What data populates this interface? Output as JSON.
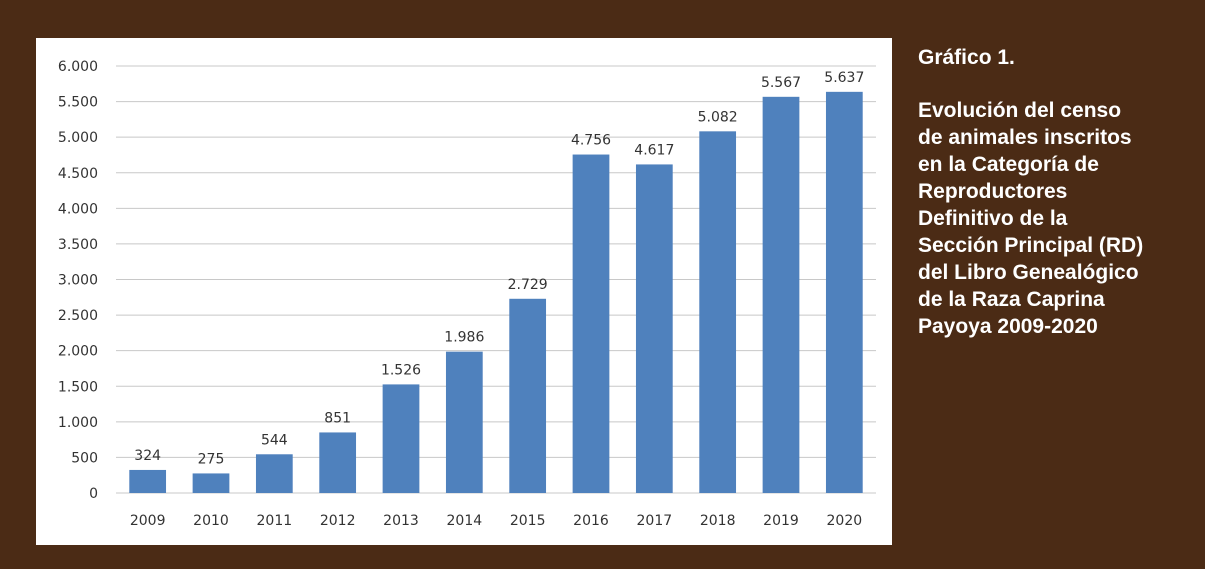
{
  "caption": {
    "number": "Gráfico 1.",
    "title_lines": [
      "Evolución del censo",
      "de animales inscritos",
      "en la Categoría de",
      "Reproductores",
      "Definitivo de la",
      "Sección Principal (RD)",
      "del Libro Genealógico",
      "de la Raza Caprina",
      "Payoya 2009-2020"
    ]
  },
  "colors": {
    "background": "#4b2b15",
    "bar": "#4f81bd",
    "panel": "#ffffff"
  },
  "chart_data": {
    "type": "bar",
    "categories": [
      "2009",
      "2010",
      "2011",
      "2012",
      "2013",
      "2014",
      "2015",
      "2016",
      "2017",
      "2018",
      "2019",
      "2020"
    ],
    "values": [
      324,
      275,
      544,
      851,
      1526,
      1986,
      2729,
      4756,
      4617,
      5082,
      5567,
      5637
    ],
    "value_labels": [
      "324",
      "275",
      "544",
      "851",
      "1.526",
      "1.986",
      "2.729",
      "4.756",
      "4.617",
      "5.082",
      "5.567",
      "5.637"
    ],
    "yticks": [
      0,
      500,
      1000,
      1500,
      2000,
      2500,
      3000,
      3500,
      4000,
      4500,
      5000,
      5500,
      6000
    ],
    "ytick_labels": [
      "0",
      "500",
      "1.000",
      "1.500",
      "2.000",
      "2.500",
      "3.000",
      "3.500",
      "4.000",
      "4.500",
      "5.000",
      "5.500",
      "6.000"
    ],
    "ylim": [
      0,
      6000
    ],
    "grid": true,
    "legend": "none",
    "title": "",
    "xlabel": "",
    "ylabel": ""
  }
}
